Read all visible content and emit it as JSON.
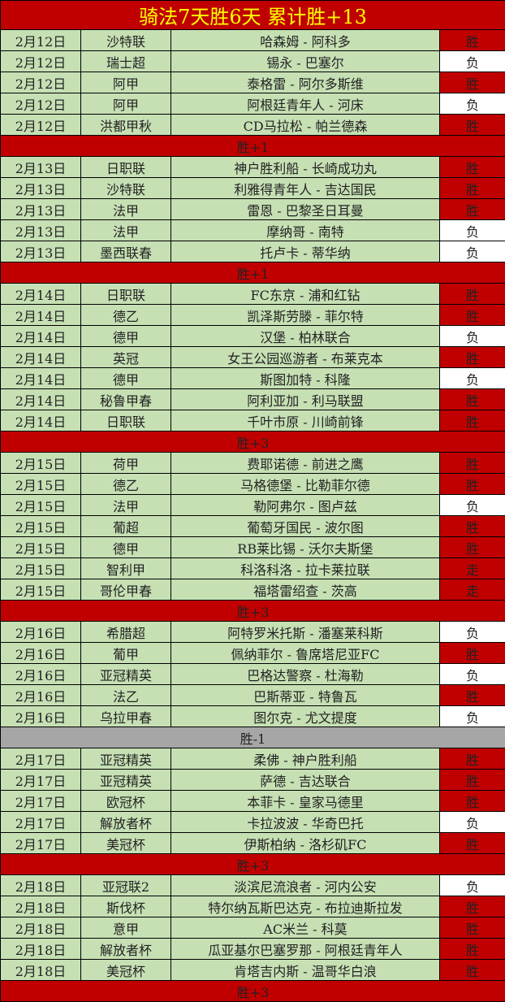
{
  "title": "骑法7天胜6天  累计胜+13",
  "colors": {
    "red": "#c00000",
    "green": "#c6e0b4",
    "grey": "#a6a6a6",
    "title_text": "#ffff00",
    "loss": "#ffffff"
  },
  "days": [
    {
      "summary": "胜+1",
      "summary_color": "red",
      "rows": [
        [
          "2月12日",
          "沙特联",
          "哈森姆 - 阿科多",
          "胜"
        ],
        [
          "2月12日",
          "瑞士超",
          "锡永 - 巴塞尔",
          "负"
        ],
        [
          "2月12日",
          "阿甲",
          "泰格雷 - 阿尔多斯维",
          "胜"
        ],
        [
          "2月12日",
          "阿甲",
          "阿根廷青年人 - 河床",
          "负"
        ],
        [
          "2月12日",
          "洪都甲秋",
          "CD马拉松 - 帕兰德森",
          "胜"
        ]
      ]
    },
    {
      "summary": "胜+1",
      "summary_color": "red",
      "rows": [
        [
          "2月13日",
          "日职联",
          "神户胜利船 - 长崎成功丸",
          "胜"
        ],
        [
          "2月13日",
          "沙特联",
          "利雅得青年人 - 吉达国民",
          "胜"
        ],
        [
          "2月13日",
          "法甲",
          "雷恩 - 巴黎圣日耳曼",
          "胜"
        ],
        [
          "2月13日",
          "法甲",
          "摩纳哥 - 南特",
          "负"
        ],
        [
          "2月13日",
          "墨西联春",
          "托卢卡 - 蒂华纳",
          "负"
        ]
      ]
    },
    {
      "summary": "胜+3",
      "summary_color": "red",
      "rows": [
        [
          "2月14日",
          "日职联",
          "FC东京 - 浦和红钻",
          "胜"
        ],
        [
          "2月14日",
          "德乙",
          "凯泽斯劳滕 - 菲尔特",
          "胜"
        ],
        [
          "2月14日",
          "德甲",
          "汉堡 - 柏林联合",
          "负"
        ],
        [
          "2月14日",
          "英冠",
          "女王公园巡游者 - 布莱克本",
          "胜"
        ],
        [
          "2月14日",
          "德甲",
          "斯图加特 - 科隆",
          "负"
        ],
        [
          "2月14日",
          "秘鲁甲春",
          "阿利亚加 - 利马联盟",
          "胜"
        ],
        [
          "2月14日",
          "日职联",
          "千叶市原 - 川崎前锋",
          "胜"
        ]
      ]
    },
    {
      "summary": "胜+3",
      "summary_color": "red",
      "rows": [
        [
          "2月15日",
          "荷甲",
          "费耶诺德 - 前进之鹰",
          "胜"
        ],
        [
          "2月15日",
          "德乙",
          "马格德堡 - 比勒菲尔德",
          "胜"
        ],
        [
          "2月15日",
          "法甲",
          "勒阿弗尔 - 图卢兹",
          "负"
        ],
        [
          "2月15日",
          "葡超",
          "葡萄牙国民 - 波尔图",
          "胜"
        ],
        [
          "2月15日",
          "德甲",
          "RB莱比锡 - 沃尔夫斯堡",
          "胜"
        ],
        [
          "2月15日",
          "智利甲",
          "科洛科洛 - 拉卡莱拉联",
          "走"
        ],
        [
          "2月15日",
          "哥伦甲春",
          "福塔雷绍查 - 茨高",
          "走"
        ]
      ]
    },
    {
      "summary": "胜-1",
      "summary_color": "grey",
      "rows": [
        [
          "2月16日",
          "希腊超",
          "阿特罗米托斯 - 潘塞莱科斯",
          "负"
        ],
        [
          "2月16日",
          "葡甲",
          "佩纳菲尔 - 鲁席塔尼亚FC",
          "胜"
        ],
        [
          "2月16日",
          "亚冠精英",
          "巴格达警察 - 杜海勒",
          "负"
        ],
        [
          "2月16日",
          "法乙",
          "巴斯蒂亚 - 特鲁瓦",
          "胜"
        ],
        [
          "2月16日",
          "乌拉甲春",
          "图尔克 - 尤文提度",
          "负"
        ]
      ]
    },
    {
      "summary": "胜+3",
      "summary_color": "red",
      "rows": [
        [
          "2月17日",
          "亚冠精英",
          "柔佛 - 神户胜利船",
          "胜"
        ],
        [
          "2月17日",
          "亚冠精英",
          "萨德 - 吉达联合",
          "胜"
        ],
        [
          "2月17日",
          "欧冠杯",
          "本菲卡 - 皇家马德里",
          "胜"
        ],
        [
          "2月17日",
          "解放者杯",
          "卡拉波波 - 华奇巴托",
          "负"
        ],
        [
          "2月17日",
          "美冠杯",
          "伊斯柏纳 - 洛杉矶FC",
          "胜"
        ]
      ]
    },
    {
      "summary": "胜+3",
      "summary_color": "red",
      "rows": [
        [
          "2月18日",
          "亚冠联2",
          "淡滨尼流浪者 - 河内公安",
          "负"
        ],
        [
          "2月18日",
          "斯伐杯",
          "特尔纳瓦斯巴达克 - 布拉迪斯拉发",
          "胜"
        ],
        [
          "2月18日",
          "意甲",
          "AC米兰 - 科莫",
          "胜"
        ],
        [
          "2月18日",
          "解放者杯",
          "瓜亚基尔巴塞罗那 - 阿根廷青年人",
          "胜"
        ],
        [
          "2月18日",
          "美冠杯",
          "肯塔吉内斯 - 温哥华白浪",
          "胜"
        ]
      ]
    }
  ]
}
